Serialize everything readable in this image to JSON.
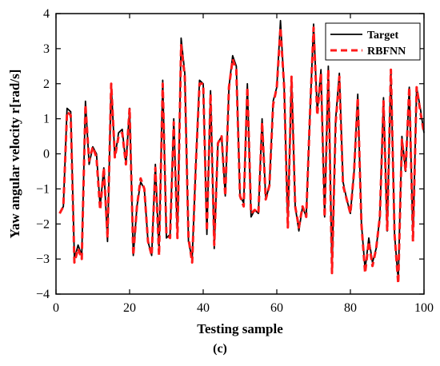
{
  "panel_label": "(c)",
  "chart_data": {
    "type": "line",
    "title": "",
    "xlabel": "Testing sample",
    "ylabel": "Yaw angular velocity r[rad/s]",
    "xlim": [
      0,
      100
    ],
    "ylim": [
      -4,
      4
    ],
    "xticks": [
      0,
      20,
      40,
      60,
      80,
      100
    ],
    "yticks": [
      -4,
      -3,
      -2,
      -1,
      0,
      1,
      2,
      3,
      4
    ],
    "grid": false,
    "legend_position": "top-right",
    "x": [
      1,
      2,
      3,
      4,
      5,
      6,
      7,
      8,
      9,
      10,
      11,
      12,
      13,
      14,
      15,
      16,
      17,
      18,
      19,
      20,
      21,
      22,
      23,
      24,
      25,
      26,
      27,
      28,
      29,
      30,
      31,
      32,
      33,
      34,
      35,
      36,
      37,
      38,
      39,
      40,
      41,
      42,
      43,
      44,
      45,
      46,
      47,
      48,
      49,
      50,
      51,
      52,
      53,
      54,
      55,
      56,
      57,
      58,
      59,
      60,
      61,
      62,
      63,
      64,
      65,
      66,
      67,
      68,
      69,
      70,
      71,
      72,
      73,
      74,
      75,
      76,
      77,
      78,
      79,
      80,
      81,
      82,
      83,
      84,
      85,
      86,
      87,
      88,
      89,
      90,
      91,
      92,
      93,
      94,
      95,
      96,
      97,
      98,
      99,
      100
    ],
    "series": [
      {
        "name": "Target",
        "color": "#000000",
        "dash": "solid",
        "values": [
          -1.7,
          -1.5,
          1.3,
          1.2,
          -3.0,
          -2.6,
          -2.9,
          1.5,
          -0.3,
          0.2,
          0.0,
          -1.5,
          -0.4,
          -2.5,
          2.0,
          -0.1,
          0.6,
          0.7,
          -0.3,
          1.3,
          -2.9,
          -1.5,
          -0.8,
          -1.0,
          -2.5,
          -2.9,
          -0.3,
          -2.8,
          2.1,
          -2.4,
          -2.3,
          1.0,
          -2.4,
          3.3,
          2.3,
          -2.5,
          -3.0,
          -0.3,
          2.1,
          2.0,
          -2.3,
          1.8,
          -2.7,
          0.3,
          0.5,
          -1.2,
          1.9,
          2.8,
          2.5,
          -1.2,
          -1.4,
          2.0,
          -1.8,
          -1.6,
          -1.7,
          1.0,
          -1.3,
          -0.9,
          1.5,
          1.9,
          3.8,
          1.9,
          -2.0,
          2.2,
          -1.5,
          -2.2,
          -1.5,
          -1.8,
          1.1,
          3.7,
          1.2,
          2.4,
          -1.8,
          2.5,
          -3.3,
          1.0,
          2.3,
          -0.8,
          -1.3,
          -1.7,
          -0.5,
          1.7,
          -2.0,
          -3.3,
          -2.4,
          -3.1,
          -2.7,
          -1.8,
          1.6,
          -2.2,
          2.4,
          -2.3,
          -3.6,
          0.5,
          -0.5,
          1.9,
          -2.4,
          1.9,
          1.3,
          0.6
        ]
      },
      {
        "name": "RBFNN",
        "color": "#ff1a1a",
        "dash": "dashed",
        "values": [
          -1.7,
          -1.5,
          1.2,
          1.1,
          -3.1,
          -2.7,
          -3.0,
          1.4,
          -0.2,
          0.2,
          -0.1,
          -1.6,
          -0.4,
          -2.4,
          2.0,
          -0.1,
          0.5,
          0.6,
          -0.3,
          1.3,
          -2.9,
          -1.5,
          -0.7,
          -1.0,
          -2.5,
          -2.9,
          -0.4,
          -2.9,
          2.0,
          -2.3,
          -2.4,
          0.9,
          -2.4,
          3.1,
          2.2,
          -2.4,
          -3.1,
          -0.3,
          2.0,
          2.0,
          -2.2,
          1.7,
          -2.6,
          0.3,
          0.5,
          -1.2,
          1.9,
          2.7,
          2.4,
          -1.2,
          -1.5,
          1.9,
          -1.7,
          -1.6,
          -1.7,
          0.9,
          -1.3,
          -0.9,
          1.4,
          1.9,
          3.6,
          1.9,
          -2.1,
          2.2,
          -1.5,
          -2.1,
          -1.5,
          -1.8,
          1.1,
          3.6,
          1.1,
          2.3,
          -1.8,
          2.4,
          -3.4,
          0.9,
          2.2,
          -0.9,
          -1.3,
          -1.7,
          -0.5,
          1.6,
          -2.0,
          -3.4,
          -2.5,
          -3.2,
          -2.7,
          -1.8,
          1.5,
          -2.2,
          2.4,
          -2.3,
          -3.7,
          0.4,
          -0.5,
          1.9,
          -2.5,
          1.9,
          1.2,
          0.6
        ]
      }
    ]
  }
}
